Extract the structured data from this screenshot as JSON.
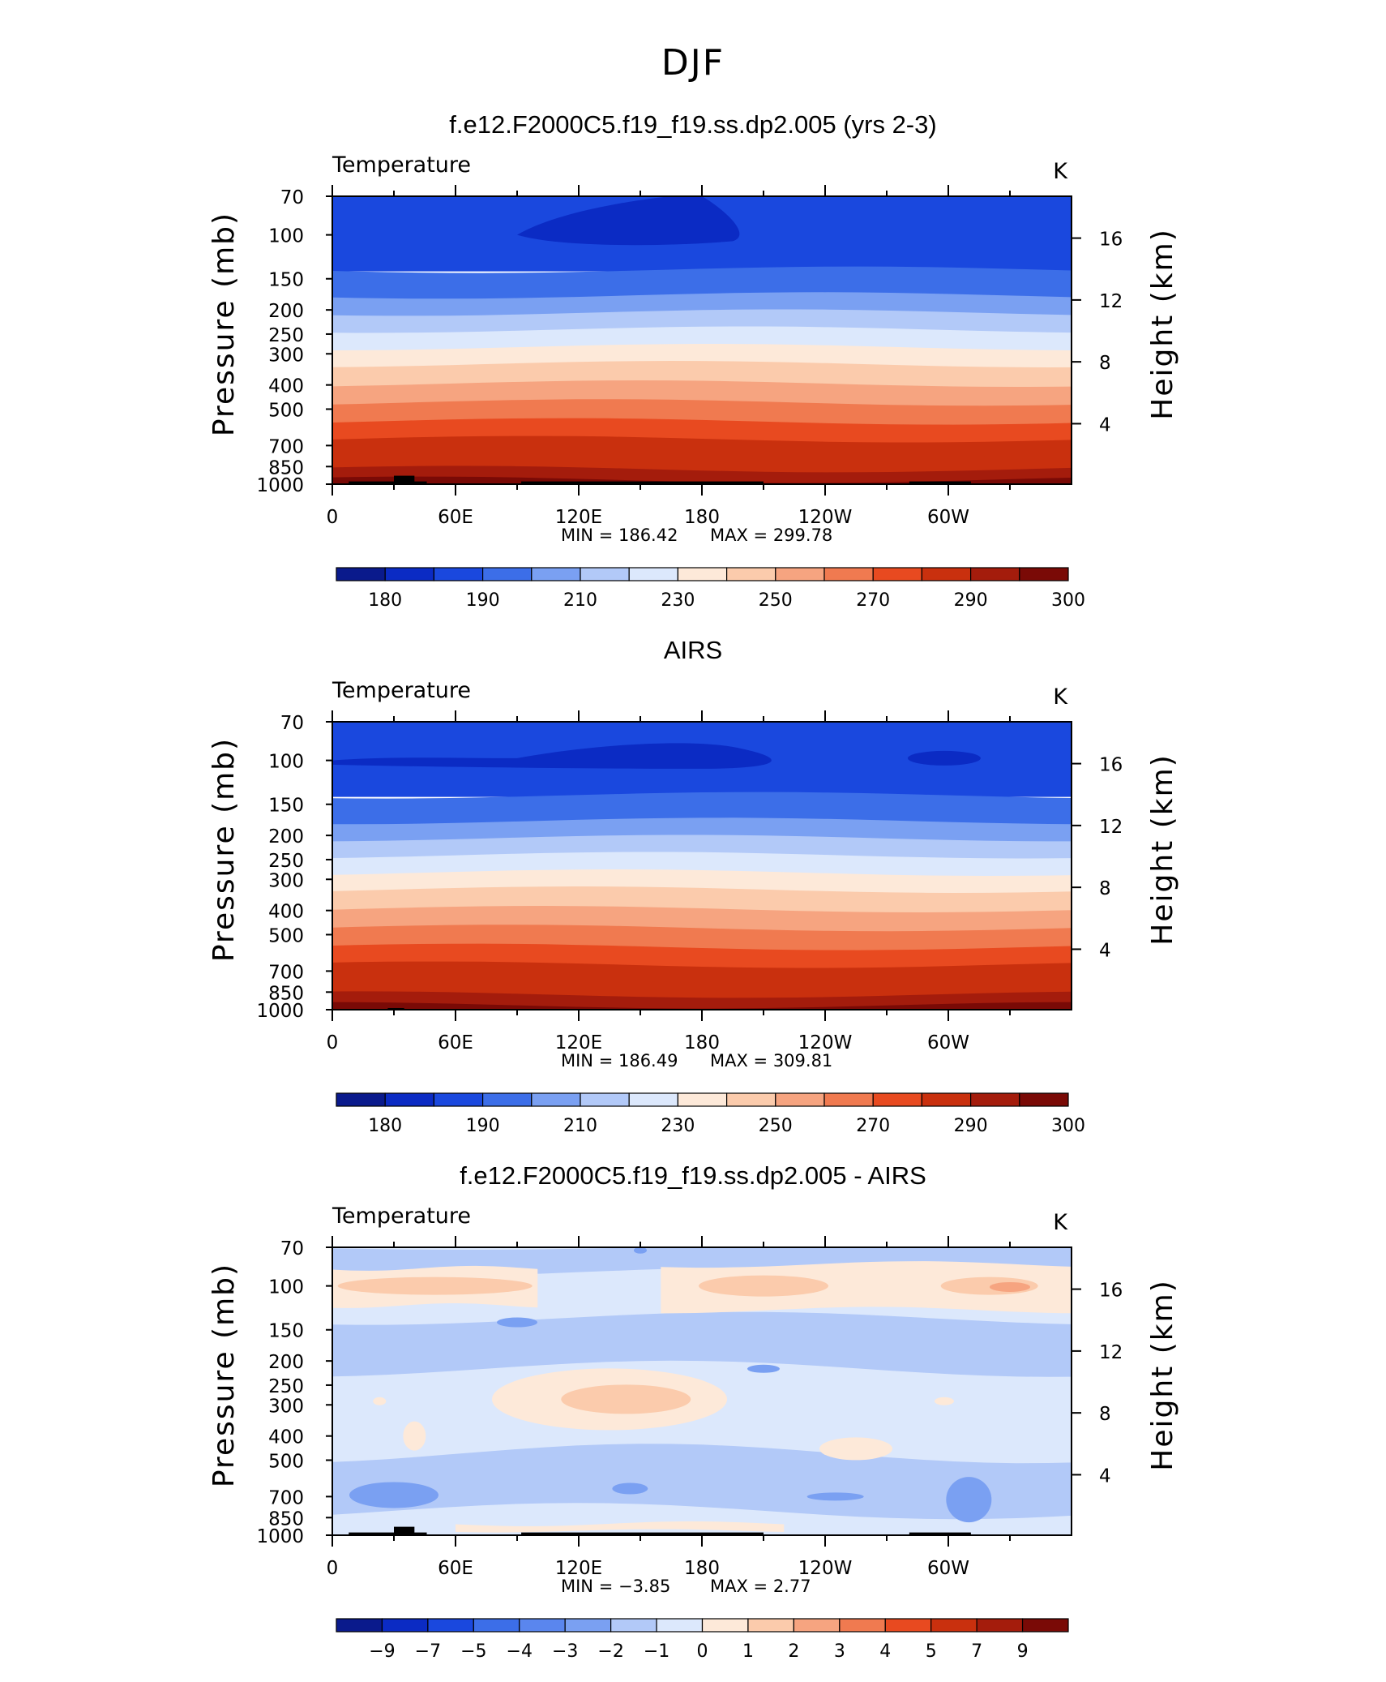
{
  "figure_title": "DJF",
  "chart_data": [
    {
      "type": "heatmap",
      "title": "f.e12.F2000C5.f19_f19.ss.dp2.005 (yrs 2-3)",
      "left_string": "Temperature",
      "units": "K",
      "ylabel": "Pressure (mb)",
      "ylabel_right": "Height (km)",
      "y_ticks": [
        "70",
        "100",
        "150",
        "200",
        "250",
        "300",
        "400",
        "500",
        "700",
        "850",
        "1000"
      ],
      "y_ticks_right": [
        "16",
        "12",
        "8",
        "4"
      ],
      "x_ticks": [
        "0",
        "60E",
        "120E",
        "180",
        "120W",
        "60W"
      ],
      "xlim": [
        0,
        360
      ],
      "ylim": [
        1000,
        70
      ],
      "min_label": "MIN  =  186.42",
      "max_label": "MAX  =  299.78",
      "min": 186.42,
      "max": 299.78,
      "colorbar_labels": [
        "180",
        "190",
        "210",
        "230",
        "250",
        "270",
        "290",
        "300"
      ],
      "colorbar_colors": [
        "#0a1a8c",
        "#0b2bc4",
        "#1a48de",
        "#3c6ee8",
        "#7aa0f2",
        "#b2c9f8",
        "#dce8fc",
        "#fde9d9",
        "#fbcbac",
        "#f6a480",
        "#f07a50",
        "#e84a20",
        "#c9300e",
        "#a41c0c",
        "#7a0a06"
      ],
      "mask": "model"
    },
    {
      "type": "heatmap",
      "title": "AIRS",
      "left_string": "Temperature",
      "units": "K",
      "ylabel": "Pressure (mb)",
      "ylabel_right": "Height (km)",
      "y_ticks": [
        "70",
        "100",
        "150",
        "200",
        "250",
        "300",
        "400",
        "500",
        "700",
        "850",
        "1000"
      ],
      "y_ticks_right": [
        "16",
        "12",
        "8",
        "4"
      ],
      "x_ticks": [
        "0",
        "60E",
        "120E",
        "180",
        "120W",
        "60W"
      ],
      "xlim": [
        0,
        360
      ],
      "ylim": [
        1000,
        70
      ],
      "min_label": "MIN  =  186.49",
      "max_label": "MAX  =  309.81",
      "min": 186.49,
      "max": 309.81,
      "colorbar_labels": [
        "180",
        "190",
        "210",
        "230",
        "250",
        "270",
        "290",
        "300"
      ],
      "colorbar_colors": [
        "#0a1a8c",
        "#0b2bc4",
        "#1a48de",
        "#3c6ee8",
        "#7aa0f2",
        "#b2c9f8",
        "#dce8fc",
        "#fde9d9",
        "#fbcbac",
        "#f6a480",
        "#f07a50",
        "#e84a20",
        "#c9300e",
        "#a41c0c",
        "#7a0a06"
      ],
      "mask": "obs"
    },
    {
      "type": "heatmap",
      "title": "f.e12.F2000C5.f19_f19.ss.dp2.005 - AIRS",
      "left_string": "Temperature",
      "units": "K",
      "ylabel": "Pressure (mb)",
      "ylabel_right": "Height (km)",
      "y_ticks": [
        "70",
        "100",
        "150",
        "200",
        "250",
        "300",
        "400",
        "500",
        "700",
        "850",
        "1000"
      ],
      "y_ticks_right": [
        "16",
        "12",
        "8",
        "4"
      ],
      "x_ticks": [
        "0",
        "60E",
        "120E",
        "180",
        "120W",
        "60W"
      ],
      "xlim": [
        0,
        360
      ],
      "ylim": [
        1000,
        70
      ],
      "min_label": "MIN  =   −3.85",
      "max_label": "MAX  =     2.77",
      "min": -3.85,
      "max": 2.77,
      "colorbar_labels": [
        "−9",
        "−7",
        "−5",
        "−4",
        "−3",
        "−2",
        "−1",
        "0",
        "1",
        "2",
        "3",
        "4",
        "5",
        "7",
        "9"
      ],
      "colorbar_colors": [
        "#0a1a8c",
        "#0b2bc4",
        "#1a48de",
        "#3c6ee8",
        "#5a86ee",
        "#7aa0f2",
        "#b2c9f8",
        "#dce8fc",
        "#fde9d9",
        "#fbcbac",
        "#f6a480",
        "#f07a50",
        "#e84a20",
        "#c9300e",
        "#a41c0c",
        "#7a0a06"
      ],
      "mask": "model"
    }
  ]
}
